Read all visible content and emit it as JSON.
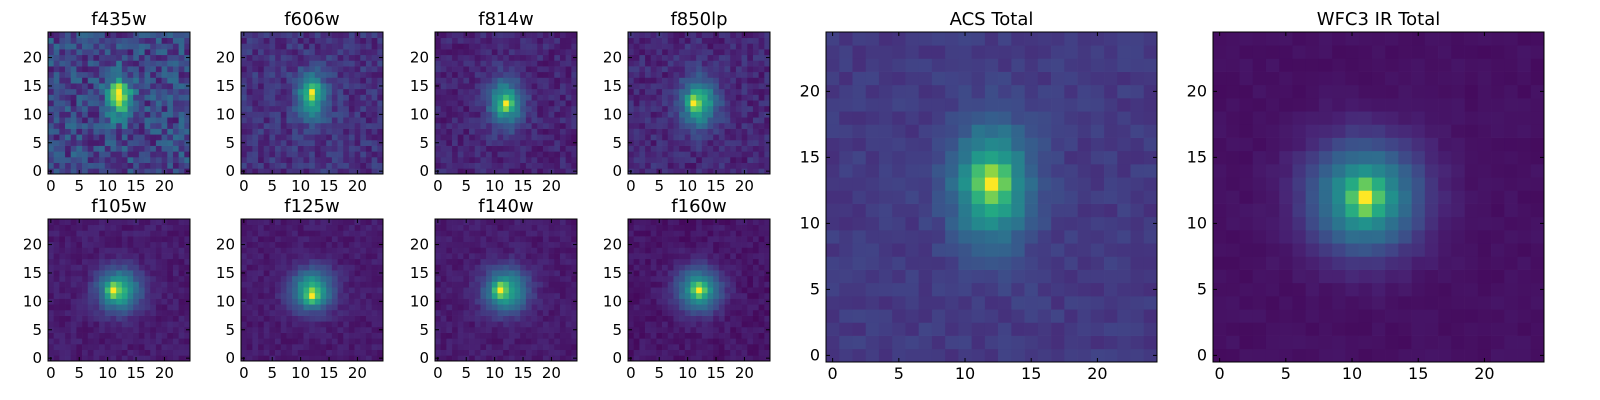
{
  "chart_data": [
    {
      "type": "heatmap",
      "title": "f435w",
      "xticks": [
        "0",
        "5",
        "10",
        "15",
        "20"
      ],
      "yticks": [
        "0",
        "5",
        "10",
        "15",
        "20"
      ],
      "grid_size": 25,
      "xlim": [
        -0.5,
        24.5
      ],
      "ylim": [
        -0.5,
        24.5
      ],
      "center": [
        12,
        13
      ],
      "peak": [
        12,
        14
      ],
      "spread": [
        1.6,
        2.6
      ],
      "noise": 0.42,
      "background": 0.3,
      "colormap": "viridis",
      "grid": false
    },
    {
      "type": "heatmap",
      "title": "f606w",
      "xticks": [
        "0",
        "5",
        "10",
        "15",
        "20"
      ],
      "yticks": [
        "0",
        "5",
        "10",
        "15",
        "20"
      ],
      "grid_size": 25,
      "xlim": [
        -0.5,
        24.5
      ],
      "ylim": [
        -0.5,
        24.5
      ],
      "center": [
        12,
        13
      ],
      "peak": [
        12,
        14
      ],
      "spread": [
        1.9,
        2.9
      ],
      "noise": 0.26,
      "background": 0.22,
      "colormap": "viridis",
      "grid": false
    },
    {
      "type": "heatmap",
      "title": "f814w",
      "xticks": [
        "0",
        "5",
        "10",
        "15",
        "20"
      ],
      "yticks": [
        "0",
        "5",
        "10",
        "15",
        "20"
      ],
      "grid_size": 25,
      "xlim": [
        -0.5,
        24.5
      ],
      "ylim": [
        -0.5,
        24.5
      ],
      "center": [
        12,
        12
      ],
      "peak": [
        12,
        12
      ],
      "spread": [
        2.1,
        3.0
      ],
      "noise": 0.2,
      "background": 0.16,
      "colormap": "viridis",
      "grid": false
    },
    {
      "type": "heatmap",
      "title": "f850lp",
      "xticks": [
        "0",
        "5",
        "10",
        "15",
        "20"
      ],
      "yticks": [
        "0",
        "5",
        "10",
        "15",
        "20"
      ],
      "grid_size": 25,
      "xlim": [
        -0.5,
        24.5
      ],
      "ylim": [
        -0.5,
        24.5
      ],
      "center": [
        12,
        12
      ],
      "peak": [
        11,
        12
      ],
      "spread": [
        2.2,
        3.0
      ],
      "noise": 0.2,
      "background": 0.16,
      "colormap": "viridis",
      "grid": false
    },
    {
      "type": "heatmap",
      "title": "f105w",
      "xticks": [
        "0",
        "5",
        "10",
        "15",
        "20"
      ],
      "yticks": [
        "0",
        "5",
        "10",
        "15",
        "20"
      ],
      "grid_size": 25,
      "xlim": [
        -0.5,
        24.5
      ],
      "ylim": [
        -0.5,
        24.5
      ],
      "center": [
        12,
        12
      ],
      "peak": [
        11,
        12
      ],
      "spread": [
        2.6,
        2.6
      ],
      "noise": 0.1,
      "background": 0.1,
      "colormap": "viridis",
      "grid": false
    },
    {
      "type": "heatmap",
      "title": "f125w",
      "xticks": [
        "0",
        "5",
        "10",
        "15",
        "20"
      ],
      "yticks": [
        "0",
        "5",
        "10",
        "15",
        "20"
      ],
      "grid_size": 25,
      "xlim": [
        -0.5,
        24.5
      ],
      "ylim": [
        -0.5,
        24.5
      ],
      "center": [
        12,
        12
      ],
      "peak": [
        12,
        11
      ],
      "spread": [
        2.6,
        2.6
      ],
      "noise": 0.1,
      "background": 0.1,
      "colormap": "viridis",
      "grid": false
    },
    {
      "type": "heatmap",
      "title": "f140w",
      "xticks": [
        "0",
        "5",
        "10",
        "15",
        "20"
      ],
      "yticks": [
        "0",
        "5",
        "10",
        "15",
        "20"
      ],
      "grid_size": 25,
      "xlim": [
        -0.5,
        24.5
      ],
      "ylim": [
        -0.5,
        24.5
      ],
      "center": [
        12,
        12
      ],
      "peak": [
        11,
        12
      ],
      "spread": [
        2.7,
        2.7
      ],
      "noise": 0.1,
      "background": 0.1,
      "colormap": "viridis",
      "grid": false
    },
    {
      "type": "heatmap",
      "title": "f160w",
      "xticks": [
        "0",
        "5",
        "10",
        "15",
        "20"
      ],
      "yticks": [
        "0",
        "5",
        "10",
        "15",
        "20"
      ],
      "grid_size": 25,
      "xlim": [
        -0.5,
        24.5
      ],
      "ylim": [
        -0.5,
        24.5
      ],
      "center": [
        12,
        12
      ],
      "peak": [
        12,
        12
      ],
      "spread": [
        2.7,
        2.7
      ],
      "noise": 0.1,
      "background": 0.08,
      "colormap": "viridis",
      "grid": false
    },
    {
      "type": "heatmap",
      "title": "ACS Total",
      "xticks": [
        "0",
        "5",
        "10",
        "15",
        "20"
      ],
      "yticks": [
        "0",
        "5",
        "10",
        "15",
        "20"
      ],
      "grid_size": 25,
      "xlim": [
        -0.5,
        24.5
      ],
      "ylim": [
        -0.5,
        24.5
      ],
      "center": [
        12,
        13
      ],
      "peak": [
        12,
        13
      ],
      "spread": [
        2.1,
        3.1
      ],
      "noise": 0.11,
      "background": 0.26,
      "colormap": "viridis",
      "grid": false
    },
    {
      "type": "heatmap",
      "title": "WFC3 IR Total",
      "xticks": [
        "0",
        "5",
        "10",
        "15",
        "20"
      ],
      "yticks": [
        "0",
        "5",
        "10",
        "15",
        "20"
      ],
      "grid_size": 25,
      "xlim": [
        -0.5,
        24.5
      ],
      "ylim": [
        -0.5,
        24.5
      ],
      "center": [
        11,
        12
      ],
      "peak": [
        11,
        12
      ],
      "spread": [
        2.9,
        2.9
      ],
      "noise": 0.04,
      "background": 0.06,
      "colormap": "viridis",
      "grid": false
    }
  ]
}
